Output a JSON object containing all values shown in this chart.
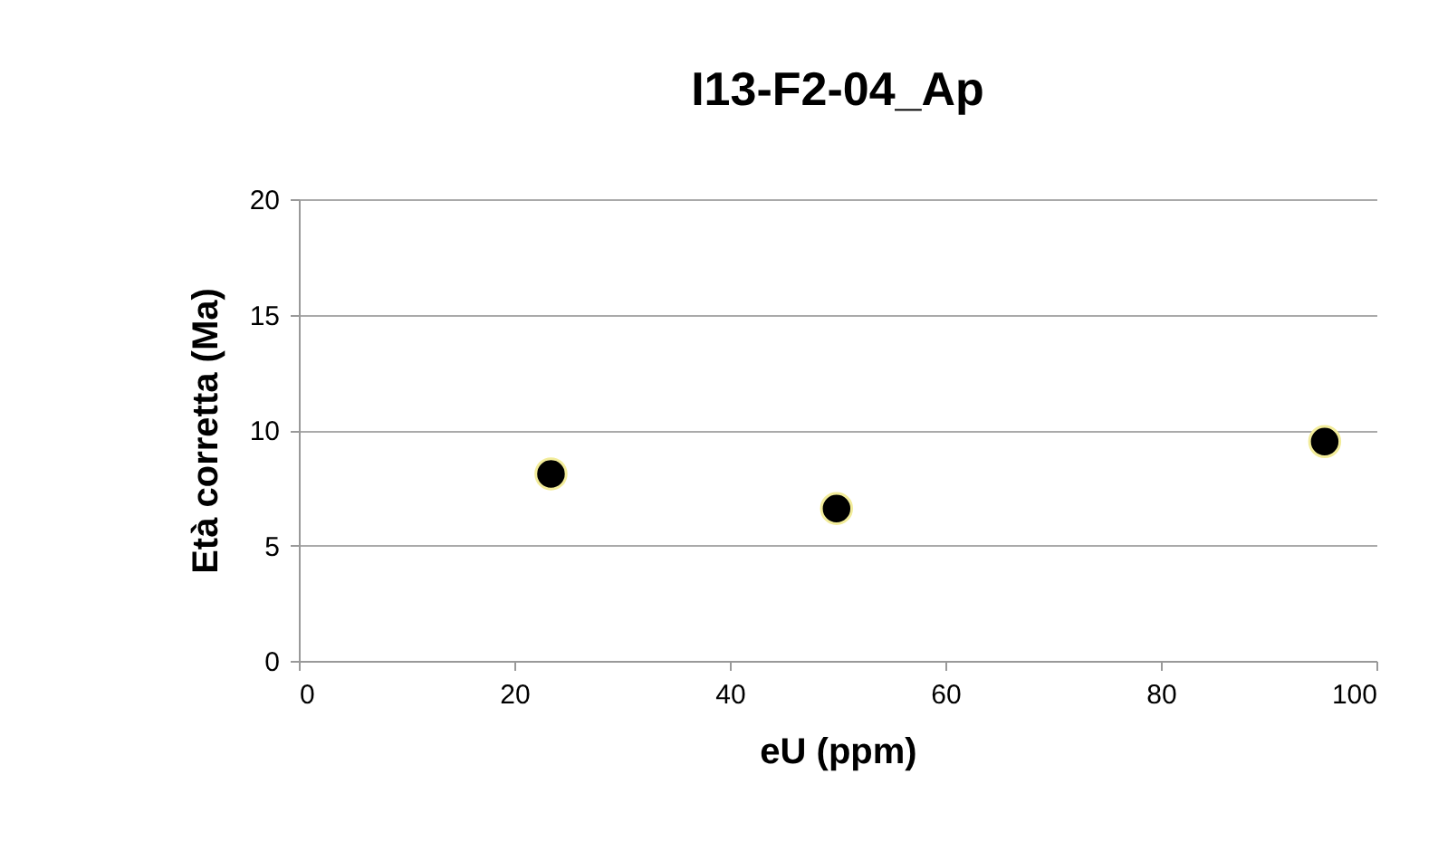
{
  "chart_data": {
    "type": "scatter",
    "title": "I13-F2-04_Ap",
    "xlabel": "eU (ppm)",
    "ylabel": "Età corretta (Ma)",
    "x": [
      23.4,
      49.9,
      95.2
    ],
    "series": [
      {
        "color": "#000000",
        "values": [
          8.1,
          6.6,
          9.5
        ]
      }
    ],
    "xlim": [
      0,
      100
    ],
    "xticks": [
      0,
      20,
      40,
      60,
      80,
      100
    ],
    "ylim": [
      0,
      20
    ],
    "yticks": [
      0,
      5,
      10,
      15,
      20
    ],
    "grid": "y",
    "marker": "circle"
  }
}
